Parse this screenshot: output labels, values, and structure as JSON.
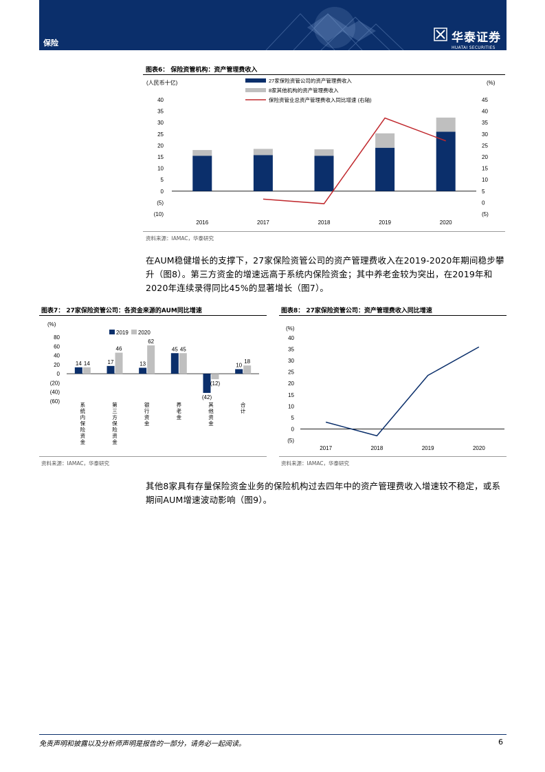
{
  "header": {
    "section": "保险",
    "brand_cn": "华泰证券",
    "brand_en": "HUATAI SECURITIES"
  },
  "colors": {
    "navy": "#0b2f6b",
    "gray": "#bfbfbf",
    "red": "#c0282d"
  },
  "fig6": {
    "title": "图表6：  保险资管机构：资产管理费收入",
    "left_unit": "(人民币十亿)",
    "right_unit": "(%)",
    "legend": [
      "27家保险资管公司的资产管理费收入",
      "8家其他机构的资产管理费收入",
      "保险资管业总资产管理费收入同比增速 (右轴)"
    ],
    "source": "资料来源：IAMAC，华泰研究",
    "left_ticks": [
      "40",
      "35",
      "30",
      "25",
      "20",
      "15",
      "10",
      "5",
      "0",
      "(5)",
      "(10)"
    ],
    "right_ticks": [
      "45",
      "40",
      "35",
      "30",
      "25",
      "20",
      "15",
      "10",
      "5",
      "0",
      "(5)"
    ]
  },
  "para1": "在AUM稳健增长的支撑下，27家保险资管公司的资产管理费收入在2019-2020年期间稳步攀升（图8）。第三方资金的增速远高于系统内保险资金；其中养老金较为突出，在2019年和2020年连续录得同比45%的显著增长（图7）。",
  "fig7": {
    "title": "图表7：  27家保险资管公司：各资金来源的AUM同比增速",
    "unit": "(%)",
    "source": "资料来源：IAMAC，华泰研究",
    "y_ticks": [
      "80",
      "60",
      "40",
      "20",
      "0",
      "(20)",
      "(40)",
      "(60)"
    ],
    "data_labels": [
      [
        "14",
        "14"
      ],
      [
        "17",
        "46"
      ],
      [
        "13",
        "62"
      ],
      [
        "45",
        "45"
      ],
      [
        "(42)",
        "(12)"
      ],
      [
        "10",
        "18"
      ]
    ]
  },
  "fig8": {
    "title": "图表8：  27家保险资管公司：资产管理费收入同比增速",
    "unit": "(%)",
    "source": "资料来源：IAMAC，华泰研究",
    "y_ticks": [
      "40",
      "35",
      "30",
      "25",
      "20",
      "15",
      "10",
      "5",
      "0",
      "(5)"
    ]
  },
  "para2": "其他8家具有存量保险资金业务的保险机构过去四年中的资产管理费收入增速较不稳定，或系期间AUM增速波动影响（图9）。",
  "footer": {
    "disclaimer": "免责声明和披露以及分析师声明是报告的一部分，请务必一起阅读。",
    "page": "6"
  },
  "chart_data": [
    {
      "type": "bar",
      "title": "保险资管机构：资产管理费收入",
      "ylabel": "人民币十亿",
      "y2label": "%",
      "categories": [
        "2016",
        "2017",
        "2018",
        "2019",
        "2020"
      ],
      "ylim": [
        -10,
        40
      ],
      "y2lim": [
        -5,
        45
      ],
      "series": [
        {
          "name": "27家保险资管公司的资产管理费收入",
          "kind": "bar-stacked",
          "color": "#0b2f6b",
          "values": [
            15.5,
            15.8,
            15.5,
            19,
            26
          ]
        },
        {
          "name": "8家其他机构的资产管理费收入",
          "kind": "bar-stacked",
          "color": "#bfbfbf",
          "values": [
            2.5,
            2.7,
            2.8,
            6.3,
            6.2
          ]
        },
        {
          "name": "保险资管业总资产管理费收入同比增速 (右轴)",
          "kind": "line",
          "axis": "right",
          "color": "#c0282d",
          "values": [
            null,
            1.5,
            -0.5,
            37,
            27
          ]
        }
      ]
    },
    {
      "type": "bar",
      "title": "27家保险资管公司：各资金来源的AUM同比增速",
      "ylabel": "%",
      "ylim": [
        -60,
        80
      ],
      "categories": [
        "系统内保险资金",
        "第三方保险资金",
        "银行资金",
        "养老金",
        "其他资金",
        "合计"
      ],
      "series": [
        {
          "name": "2019",
          "color": "#0b2f6b",
          "values": [
            14,
            17,
            13,
            45,
            -42,
            10
          ]
        },
        {
          "name": "2020",
          "color": "#bfbfbf",
          "values": [
            14,
            46,
            62,
            45,
            -12,
            18
          ]
        }
      ]
    },
    {
      "type": "line",
      "title": "27家保险资管公司：资产管理费收入同比增速",
      "ylabel": "%",
      "ylim": [
        -5,
        40
      ],
      "x": [
        "2017",
        "2018",
        "2019",
        "2020"
      ],
      "series": [
        {
          "color": "#0b2f6b",
          "values": [
            3,
            -3,
            23.5,
            36
          ]
        }
      ]
    }
  ]
}
